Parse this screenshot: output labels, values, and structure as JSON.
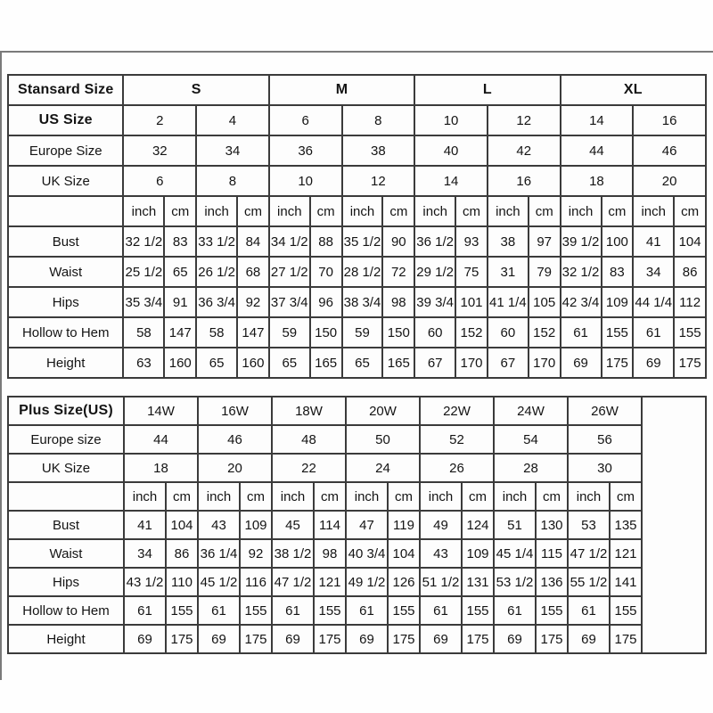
{
  "tables": [
    {
      "title": "Stansard Size",
      "size_groups": [
        {
          "label": "S"
        },
        {
          "label": "M"
        },
        {
          "label": "L"
        },
        {
          "label": "XL"
        }
      ],
      "size_rows": [
        {
          "label": "US Size",
          "bold": true,
          "values": [
            "2",
            "4",
            "6",
            "8",
            "10",
            "12",
            "14",
            "16"
          ]
        },
        {
          "label": "Europe Size",
          "bold": false,
          "values": [
            "32",
            "34",
            "36",
            "38",
            "40",
            "42",
            "44",
            "46"
          ]
        },
        {
          "label": "UK Size",
          "bold": false,
          "values": [
            "6",
            "8",
            "10",
            "12",
            "14",
            "16",
            "18",
            "20"
          ]
        }
      ],
      "unit_row": {
        "units": [
          "inch",
          "cm"
        ]
      },
      "measure_rows": [
        {
          "label": "Bust",
          "values": [
            [
              "32 1/2",
              "83"
            ],
            [
              "33 1/2",
              "84"
            ],
            [
              "34 1/2",
              "88"
            ],
            [
              "35 1/2",
              "90"
            ],
            [
              "36 1/2",
              "93"
            ],
            [
              "38",
              "97"
            ],
            [
              "39 1/2",
              "100"
            ],
            [
              "41",
              "104"
            ]
          ]
        },
        {
          "label": "Waist",
          "values": [
            [
              "25 1/2",
              "65"
            ],
            [
              "26 1/2",
              "68"
            ],
            [
              "27 1/2",
              "70"
            ],
            [
              "28 1/2",
              "72"
            ],
            [
              "29 1/2",
              "75"
            ],
            [
              "31",
              "79"
            ],
            [
              "32 1/2",
              "83"
            ],
            [
              "34",
              "86"
            ]
          ]
        },
        {
          "label": "Hips",
          "values": [
            [
              "35 3/4",
              "91"
            ],
            [
              "36 3/4",
              "92"
            ],
            [
              "37 3/4",
              "96"
            ],
            [
              "38 3/4",
              "98"
            ],
            [
              "39 3/4",
              "101"
            ],
            [
              "41 1/4",
              "105"
            ],
            [
              "42 3/4",
              "109"
            ],
            [
              "44 1/4",
              "112"
            ]
          ]
        },
        {
          "label": "Hollow to Hem",
          "values": [
            [
              "58",
              "147"
            ],
            [
              "58",
              "147"
            ],
            [
              "59",
              "150"
            ],
            [
              "59",
              "150"
            ],
            [
              "60",
              "152"
            ],
            [
              "60",
              "152"
            ],
            [
              "61",
              "155"
            ],
            [
              "61",
              "155"
            ]
          ]
        },
        {
          "label": "Height",
          "values": [
            [
              "63",
              "160"
            ],
            [
              "65",
              "160"
            ],
            [
              "65",
              "165"
            ],
            [
              "65",
              "165"
            ],
            [
              "67",
              "170"
            ],
            [
              "67",
              "170"
            ],
            [
              "69",
              "175"
            ],
            [
              "69",
              "175"
            ]
          ]
        }
      ]
    },
    {
      "title": "Plus Size(US)",
      "size_header_values": [
        "14W",
        "16W",
        "18W",
        "20W",
        "22W",
        "24W",
        "26W"
      ],
      "size_rows": [
        {
          "label": "Europe size",
          "bold": false,
          "values": [
            "44",
            "46",
            "48",
            "50",
            "52",
            "54",
            "56"
          ]
        },
        {
          "label": "UK Size",
          "bold": false,
          "values": [
            "18",
            "20",
            "22",
            "24",
            "26",
            "28",
            "30"
          ]
        }
      ],
      "unit_row": {
        "units": [
          "inch",
          "cm"
        ]
      },
      "measure_rows": [
        {
          "label": "Bust",
          "values": [
            [
              "41",
              "104"
            ],
            [
              "43",
              "109"
            ],
            [
              "45",
              "114"
            ],
            [
              "47",
              "119"
            ],
            [
              "49",
              "124"
            ],
            [
              "51",
              "130"
            ],
            [
              "53",
              "135"
            ]
          ]
        },
        {
          "label": "Waist",
          "values": [
            [
              "34",
              "86"
            ],
            [
              "36 1/4",
              "92"
            ],
            [
              "38 1/2",
              "98"
            ],
            [
              "40 3/4",
              "104"
            ],
            [
              "43",
              "109"
            ],
            [
              "45 1/4",
              "115"
            ],
            [
              "47 1/2",
              "121"
            ]
          ]
        },
        {
          "label": "Hips",
          "values": [
            [
              "43 1/2",
              "110"
            ],
            [
              "45 1/2",
              "116"
            ],
            [
              "47 1/2",
              "121"
            ],
            [
              "49 1/2",
              "126"
            ],
            [
              "51 1/2",
              "131"
            ],
            [
              "53 1/2",
              "136"
            ],
            [
              "55 1/2",
              "141"
            ]
          ]
        },
        {
          "label": "Hollow to Hem",
          "values": [
            [
              "61",
              "155"
            ],
            [
              "61",
              "155"
            ],
            [
              "61",
              "155"
            ],
            [
              "61",
              "155"
            ],
            [
              "61",
              "155"
            ],
            [
              "61",
              "155"
            ],
            [
              "61",
              "155"
            ]
          ]
        },
        {
          "label": "Height",
          "values": [
            [
              "69",
              "175"
            ],
            [
              "69",
              "175"
            ],
            [
              "69",
              "175"
            ],
            [
              "69",
              "175"
            ],
            [
              "69",
              "175"
            ],
            [
              "69",
              "175"
            ],
            [
              "69",
              "175"
            ]
          ]
        }
      ]
    }
  ],
  "colors": {
    "table_border": "#3b3b3b",
    "frame_border": "#7a7a7a",
    "cell_bg": "#fdfdfd",
    "text": "#141414"
  }
}
